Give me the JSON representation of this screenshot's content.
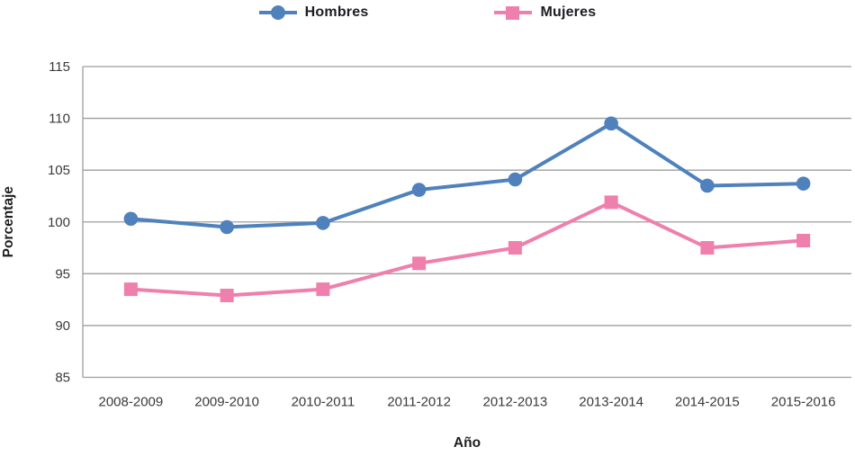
{
  "figure": {
    "background": "#ffffff"
  },
  "legend": {
    "items": [
      {
        "label": "Hombres",
        "marker": "circle",
        "color": "#4f81bd"
      },
      {
        "label": "Mujeres",
        "marker": "square",
        "color": "#ef7fad"
      }
    ]
  },
  "chart_data": {
    "type": "line",
    "title": "",
    "xlabel": "Año",
    "ylabel": "Porcentaje",
    "categories": [
      "2008-2009",
      "2009-2010",
      "2010-2011",
      "2011-2012",
      "2012-2013",
      "2013-2014",
      "2014-2015",
      "2015-2016"
    ],
    "series": [
      {
        "name": "Hombres",
        "marker": "circle",
        "color": "#4f81bd",
        "values": [
          100.3,
          99.5,
          99.9,
          103.1,
          104.1,
          109.5,
          103.5,
          103.7
        ]
      },
      {
        "name": "Mujeres",
        "marker": "square",
        "color": "#ef7fad",
        "values": [
          93.5,
          92.9,
          93.5,
          96.0,
          97.5,
          101.9,
          97.5,
          98.2
        ]
      }
    ],
    "ylim": [
      85,
      115
    ],
    "yticks": [
      85,
      90,
      95,
      100,
      105,
      110,
      115
    ],
    "grid": true,
    "legend_position": "top",
    "colors": {
      "gridline": "#9e9e9e",
      "tick_text": "#3a3a3a",
      "axis_title_text": "#1f1f1f",
      "legend_text": "#1c1c24"
    }
  }
}
